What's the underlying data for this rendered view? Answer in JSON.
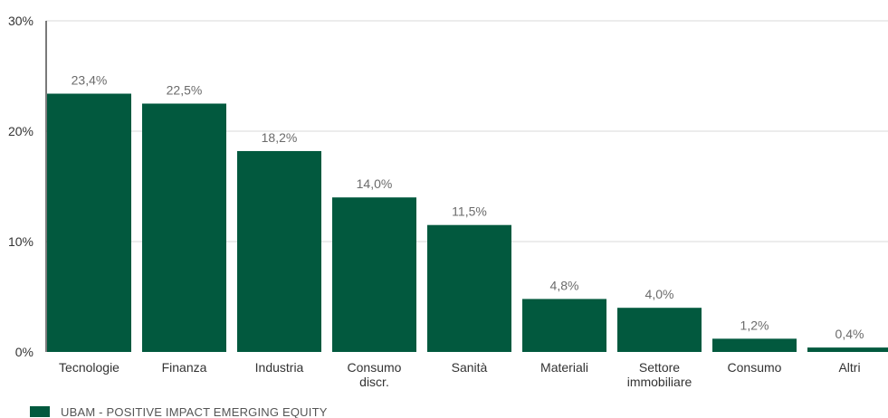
{
  "chart_data": {
    "type": "bar",
    "categories": [
      "Tecnologie",
      "Finanza",
      "Industria",
      "Consumo discr.",
      "Sanità",
      "Materiali",
      "Settore immobiliare",
      "Consumo",
      "Altri"
    ],
    "category_lines": [
      [
        "Tecnologie"
      ],
      [
        "Finanza"
      ],
      [
        "Industria"
      ],
      [
        "Consumo",
        "discr."
      ],
      [
        "Sanità"
      ],
      [
        "Materiali"
      ],
      [
        "Settore",
        "immobiliare"
      ],
      [
        "Consumo"
      ],
      [
        "Altri"
      ]
    ],
    "series": [
      {
        "name": "UBAM - POSITIVE IMPACT EMERGING EQUITY",
        "values": [
          23.4,
          22.5,
          18.2,
          14.0,
          11.5,
          4.8,
          4.0,
          1.2,
          0.4
        ]
      }
    ],
    "data_labels": [
      "23,4%",
      "22,5%",
      "18,2%",
      "14,0%",
      "11,5%",
      "4,8%",
      "4,0%",
      "1,2%",
      "0,4%"
    ],
    "y_ticks": [
      0,
      10,
      20,
      30
    ],
    "y_tick_labels": [
      "0%",
      "10%",
      "20%",
      "30%"
    ],
    "ylim": [
      0,
      30
    ],
    "grid": true,
    "legend_position": "bottom-left",
    "colors": {
      "bar": "#02593E",
      "grid": "#d8d8d8",
      "axis": "#222222",
      "label": "#6b6b6b",
      "text": "#333333"
    }
  },
  "legend": {
    "label": "UBAM - POSITIVE IMPACT EMERGING EQUITY"
  }
}
